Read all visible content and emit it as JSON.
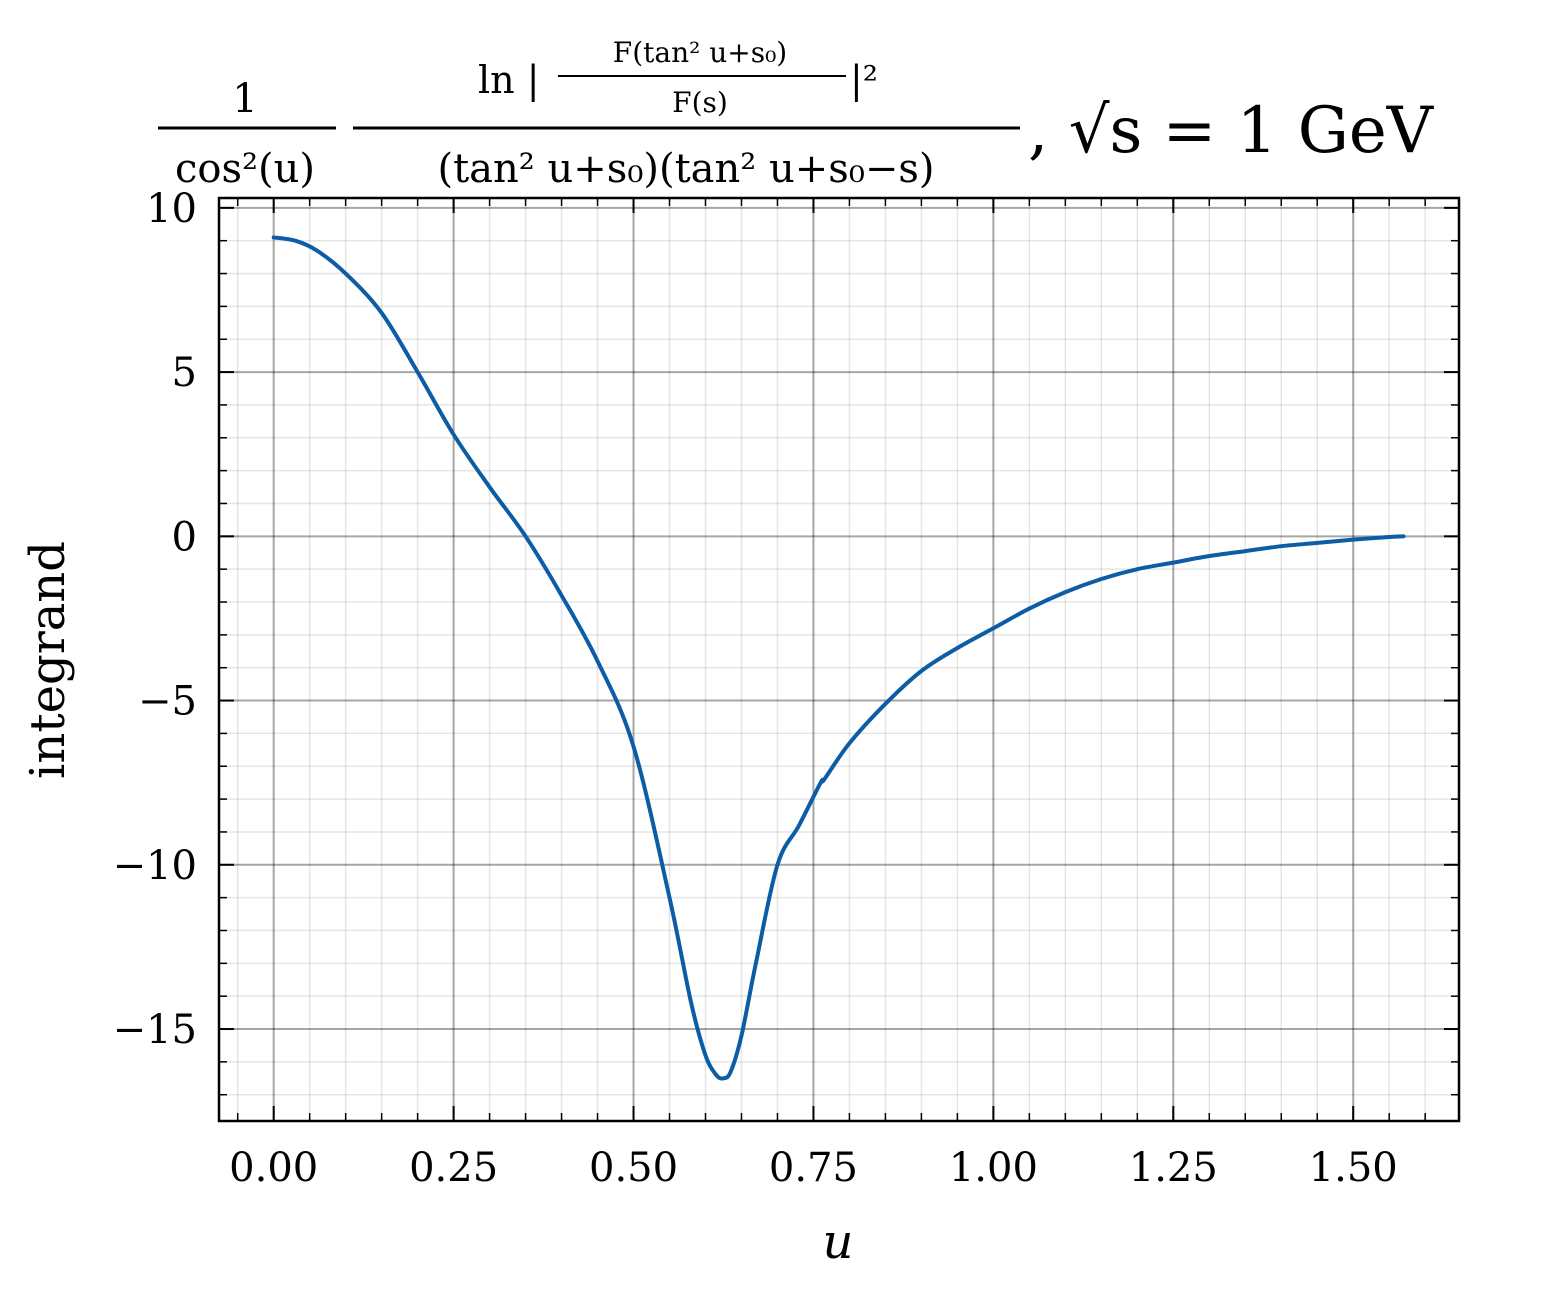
{
  "chart_data": {
    "type": "line",
    "title": {
      "first_fraction_numerator": "1",
      "first_fraction_denominator": "cos²(u)",
      "second_fraction_numerator_prefix": "ln |",
      "inner_fraction_numerator": "F(tan² u+s₀)",
      "inner_fraction_denominator": "F(s)",
      "second_fraction_numerator_suffix": "|²",
      "second_fraction_denominator": "(tan² u+s₀)(tan² u+s₀−s)",
      "suffix": ", √s = 1 GeV"
    },
    "xlabel": "u",
    "ylabel": "integrand",
    "xlim": [
      -0.076,
      1.647
    ],
    "ylim": [
      -17.8,
      10.3
    ],
    "x_major_ticks": [
      0.0,
      0.25,
      0.5,
      0.75,
      1.0,
      1.25,
      1.5
    ],
    "x_tick_labels": [
      "0.00",
      "0.25",
      "0.50",
      "0.75",
      "1.00",
      "1.25",
      "1.50"
    ],
    "y_major_ticks": [
      -15,
      -10,
      -5,
      0,
      5,
      10
    ],
    "y_tick_labels": [
      "−15",
      "−10",
      "−5",
      "0",
      "5",
      "10"
    ],
    "grid": true,
    "series": [
      {
        "color": "#0C5DA5",
        "x": [
          0.0,
          0.03,
          0.06,
          0.1,
          0.15,
          0.2,
          0.25,
          0.3,
          0.35,
          0.4,
          0.45,
          0.5,
          0.55,
          0.58,
          0.6,
          0.615,
          0.625,
          0.635,
          0.65,
          0.67,
          0.7,
          0.73,
          0.76,
          0.765,
          0.8,
          0.85,
          0.9,
          0.95,
          1.0,
          1.05,
          1.1,
          1.15,
          1.2,
          1.25,
          1.3,
          1.35,
          1.4,
          1.45,
          1.5,
          1.55,
          1.57
        ],
        "y": [
          9.1,
          9.0,
          8.7,
          8.0,
          6.8,
          5.0,
          3.1,
          1.5,
          0.0,
          -1.8,
          -3.8,
          -6.4,
          -11.0,
          -14.2,
          -15.8,
          -16.4,
          -16.5,
          -16.3,
          -15.2,
          -13.0,
          -10.0,
          -8.8,
          -7.5,
          -7.4,
          -6.3,
          -5.1,
          -4.1,
          -3.4,
          -2.8,
          -2.2,
          -1.7,
          -1.3,
          -1.0,
          -0.8,
          -0.6,
          -0.45,
          -0.3,
          -0.2,
          -0.1,
          -0.02,
          0.0
        ]
      }
    ]
  }
}
